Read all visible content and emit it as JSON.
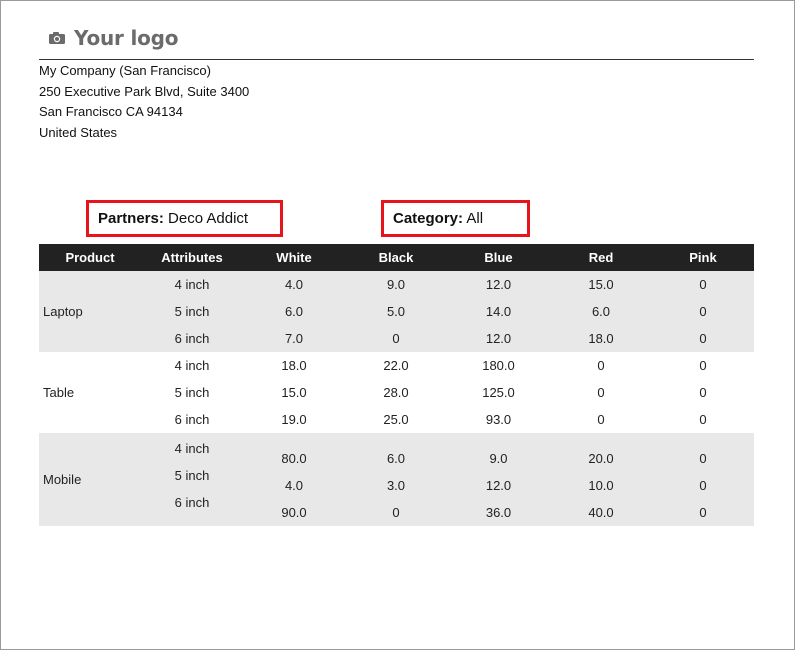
{
  "logo": {
    "text": "Your logo",
    "icon": "camera-icon"
  },
  "company": {
    "name": "My Company (San Francisco)",
    "street": "250 Executive Park Blvd, Suite 3400",
    "city": "San Francisco CA 94134",
    "country": "United States"
  },
  "filters": {
    "partners_label": "Partners:",
    "partners_value": "Deco Addict",
    "category_label": "Category:",
    "category_value": "All"
  },
  "table": {
    "headers": [
      "Product",
      "Attributes",
      "White",
      "Black",
      "Blue",
      "Red",
      "Pink"
    ],
    "groups": [
      {
        "product": "Laptop",
        "rows": [
          {
            "attr": "4 inch",
            "values": [
              "4.0",
              "9.0",
              "12.0",
              "15.0",
              "0"
            ]
          },
          {
            "attr": "5 inch",
            "values": [
              "6.0",
              "5.0",
              "14.0",
              "6.0",
              "0"
            ]
          },
          {
            "attr": "6 inch",
            "values": [
              "7.0",
              "0",
              "12.0",
              "18.0",
              "0"
            ]
          }
        ]
      },
      {
        "product": "Table",
        "rows": [
          {
            "attr": "4 inch",
            "values": [
              "18.0",
              "22.0",
              "180.0",
              "0",
              "0"
            ]
          },
          {
            "attr": "5 inch",
            "values": [
              "15.0",
              "28.0",
              "125.0",
              "0",
              "0"
            ]
          },
          {
            "attr": "6 inch",
            "values": [
              "19.0",
              "25.0",
              "93.0",
              "0",
              "0"
            ]
          }
        ]
      },
      {
        "product": "Mobile",
        "rows": [
          {
            "attr": "4 inch",
            "values": [
              "80.0",
              "6.0",
              "9.0",
              "20.0",
              "0"
            ]
          },
          {
            "attr": "5 inch",
            "values": [
              "4.0",
              "3.0",
              "12.0",
              "10.0",
              "0"
            ]
          },
          {
            "attr": "6 inch",
            "values": [
              "90.0",
              "0",
              "36.0",
              "40.0",
              "0"
            ]
          }
        ]
      }
    ]
  },
  "colors": {
    "header_bg": "#222222",
    "band_bg": "#e9e8e9",
    "highlight": "#e8141b",
    "logo_text": "#6b6b6b"
  }
}
